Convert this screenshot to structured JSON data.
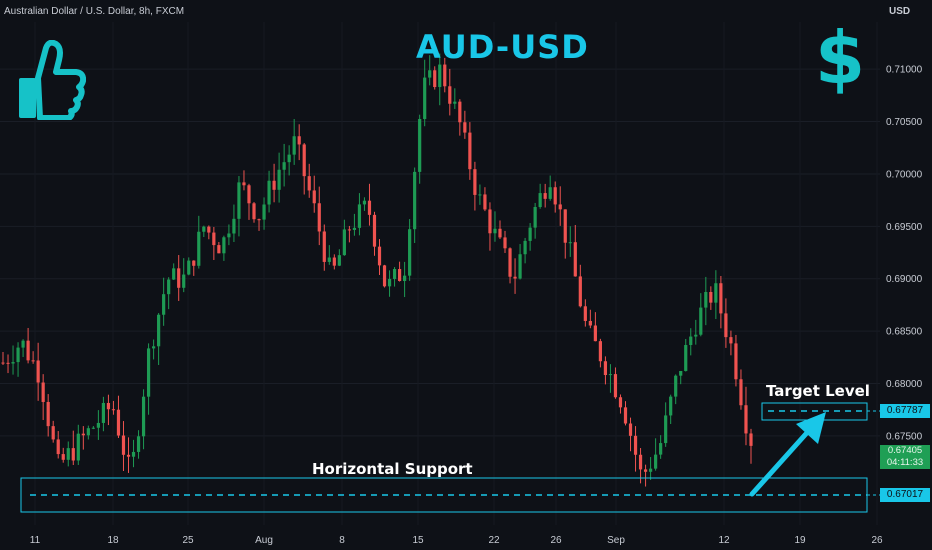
{
  "header": {
    "symbol_info": "Australian Dollar / U.S. Dollar, 8h, FXCM",
    "currency": "USD"
  },
  "title": "AUD-USD",
  "annotations": {
    "support_label": "Horizontal Support",
    "target_label": "Target Level"
  },
  "icons": {
    "thumb": "thumbs-up-icon",
    "dollar": "dollar-sign-icon",
    "dollar_glyph": "$"
  },
  "colors": {
    "up": "#26a69a",
    "up_body": "#1e9b54",
    "down": "#ef5350",
    "accent": "#19c7e8",
    "background": "#0e1117"
  },
  "price_labels": {
    "target": "0.67787",
    "support": "0.67017",
    "current": "0.67405",
    "countdown": "04:11:33"
  },
  "chart_data": {
    "type": "candlestick",
    "title": "AUD-USD",
    "ylim": [
      0.6665,
      0.7145
    ],
    "y_ticks": [
      "0.71000",
      "0.70500",
      "0.70000",
      "0.69500",
      "0.69000",
      "0.68500",
      "0.68000",
      "0.67500"
    ],
    "x_ticks": [
      "11",
      "18",
      "25",
      "Aug",
      "8",
      "15",
      "22",
      "26",
      "Sep",
      "12",
      "19",
      "26"
    ],
    "grid": true,
    "levels": {
      "support": 0.67017,
      "target": 0.67787,
      "current": 0.67405
    },
    "path": [
      0.682,
      0.684,
      0.681,
      0.672,
      0.674,
      0.676,
      0.678,
      0.671,
      0.683,
      0.69,
      0.69,
      0.695,
      0.693,
      0.699,
      0.696,
      0.7,
      0.703,
      0.697,
      0.69,
      0.695,
      0.697,
      0.689,
      0.691,
      0.708,
      0.71,
      0.705,
      0.698,
      0.694,
      0.69,
      0.696,
      0.7,
      0.693,
      0.685,
      0.682,
      0.678,
      0.671,
      0.674,
      0.681,
      0.686,
      0.689,
      0.683,
      0.674
    ]
  }
}
